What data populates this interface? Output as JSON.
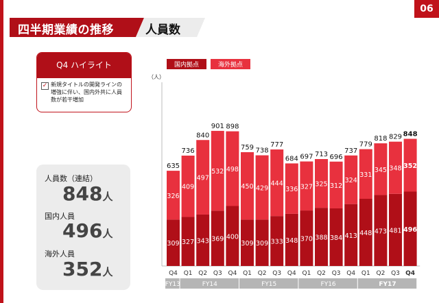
{
  "page": {
    "title": "四半期業績の推移",
    "subtitle": "人員数",
    "page_number": "06"
  },
  "highlight": {
    "heading": "Q4 ハイライト",
    "check_mark": "✓",
    "lines": [
      "新規タイトルの開発ラインの",
      "増強に伴い、国内外共に人員",
      "数が若干増加"
    ]
  },
  "stats": {
    "total_label": "人員数（連結）",
    "total_value": "848",
    "domestic_label": "国内人員",
    "domestic_value": "496",
    "overseas_label": "海外人員",
    "overseas_value": "352",
    "unit": "人"
  },
  "colors": {
    "domestic": "#b00f18",
    "overseas": "#e8313e",
    "accent": "#c0121a",
    "fy_label_bg": "#b5b5b5"
  },
  "chart_data": {
    "type": "bar",
    "stacked": true,
    "unit_label": "（人）",
    "categories": [
      "Q4",
      "Q1",
      "Q2",
      "Q3",
      "Q4",
      "Q1",
      "Q2",
      "Q3",
      "Q4",
      "Q1",
      "Q2",
      "Q3",
      "Q4",
      "Q1",
      "Q2",
      "Q3",
      "Q4"
    ],
    "fiscal_years": [
      {
        "label": "FY13",
        "count": 1
      },
      {
        "label": "FY14",
        "count": 4
      },
      {
        "label": "FY15",
        "count": 4
      },
      {
        "label": "FY16",
        "count": 4
      },
      {
        "label": "FY17",
        "count": 4,
        "highlight": true
      }
    ],
    "series": [
      {
        "name": "国内拠点",
        "values": [
          309,
          327,
          343,
          369,
          400,
          309,
          309,
          333,
          348,
          370,
          388,
          384,
          413,
          448,
          473,
          481,
          496
        ]
      },
      {
        "name": "海外拠点",
        "values": [
          326,
          409,
          497,
          532,
          498,
          450,
          429,
          444,
          336,
          327,
          325,
          312,
          324,
          331,
          345,
          348,
          352
        ]
      }
    ],
    "totals": [
      635,
      736,
      840,
      901,
      898,
      759,
      738,
      777,
      684,
      697,
      713,
      696,
      737,
      779,
      818,
      829,
      848
    ],
    "ylim": [
      0,
      960
    ],
    "highlight_last": true,
    "legend": "top-left",
    "grid": false
  }
}
